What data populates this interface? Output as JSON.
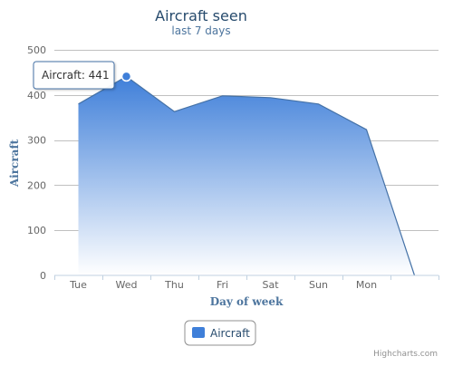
{
  "chart_data": {
    "type": "area",
    "title": "Aircraft seen",
    "subtitle": "last 7 days",
    "xlabel": "Day of week",
    "ylabel": "Aircraft",
    "categories": [
      "Tue",
      "Wed",
      "Thu",
      "Fri",
      "Sat",
      "Sun",
      "Mon",
      ""
    ],
    "ylim": [
      0,
      500
    ],
    "yticks": [
      0,
      100,
      200,
      300,
      400,
      500
    ],
    "series": [
      {
        "name": "Aircraft",
        "values": [
          380,
          441,
          363,
          398,
          394,
          380,
          323,
          0
        ]
      }
    ],
    "legend": "bottom-center",
    "grid": true,
    "tooltip": {
      "label": "Aircraft: 441",
      "index": 1
    },
    "credits": "Highcharts.com",
    "colors": {
      "series": "#4572A7",
      "fill_top": "#3f7fd9",
      "fill_bottom": "#ffffff",
      "title": "#274b6d",
      "axis_title": "#4d759e"
    }
  }
}
